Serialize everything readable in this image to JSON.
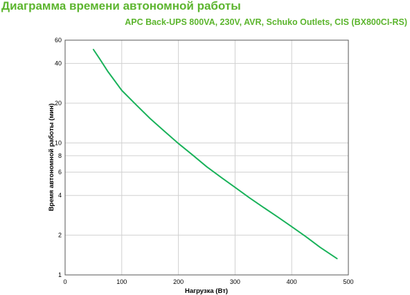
{
  "chart_data": {
    "type": "line",
    "title": "Диаграмма времени автономной работы",
    "subtitle": "APC Back-UPS 800VA, 230V, AVR, Schuko Outlets, CIS (BX800CI-RS)",
    "xlabel": "Нагрузка (Вт)",
    "ylabel": "Время автономной работы (мин)",
    "xlim": [
      0,
      500
    ],
    "ylim": [
      1,
      60
    ],
    "y_scale": "log",
    "x_ticks": [
      0,
      100,
      200,
      300,
      400,
      500
    ],
    "y_ticks": [
      1,
      2,
      4,
      6,
      8,
      10,
      20,
      40,
      60
    ],
    "grid": true,
    "line_color": "#19b25a",
    "series": [
      {
        "x": [
          50,
          60,
          75,
          100,
          125,
          150,
          175,
          200,
          225,
          250,
          275,
          300,
          325,
          350,
          375,
          400,
          425,
          450,
          480
        ],
        "y": [
          51,
          44,
          35,
          25,
          19.5,
          15.3,
          12.3,
          9.9,
          8.1,
          6.6,
          5.5,
          4.6,
          3.85,
          3.25,
          2.75,
          2.32,
          1.95,
          1.62,
          1.33
        ]
      }
    ]
  }
}
